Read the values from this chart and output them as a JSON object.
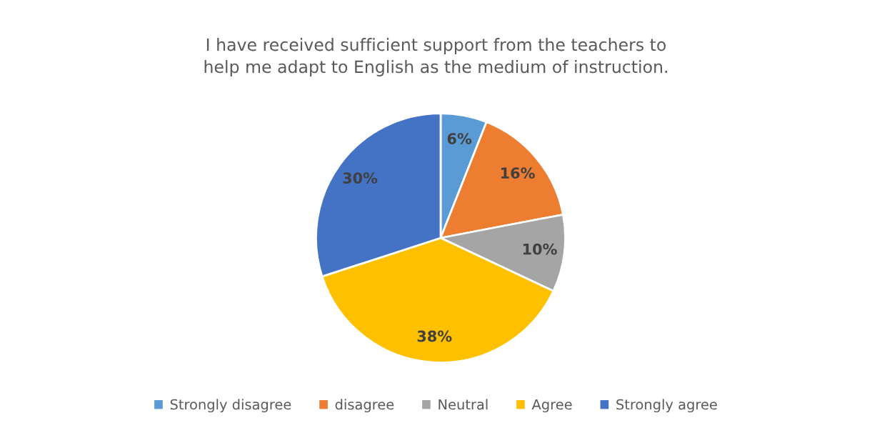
{
  "chart_data": {
    "type": "pie",
    "title": "I have received sufficient support from the teachers to\nhelp me adapt to English as the medium of instruction.",
    "categories": [
      "Strongly disagree",
      "disagree",
      "Neutral",
      "Agree",
      "Strongly agree"
    ],
    "values": [
      6,
      16,
      10,
      38,
      30
    ],
    "colors": [
      "#5b9bd5",
      "#ed7d31",
      "#a5a5a5",
      "#ffc000",
      "#4472c4"
    ],
    "value_labels": [
      "6%",
      "16%",
      "10%",
      "38%",
      "30%"
    ],
    "legend": "bottom"
  }
}
